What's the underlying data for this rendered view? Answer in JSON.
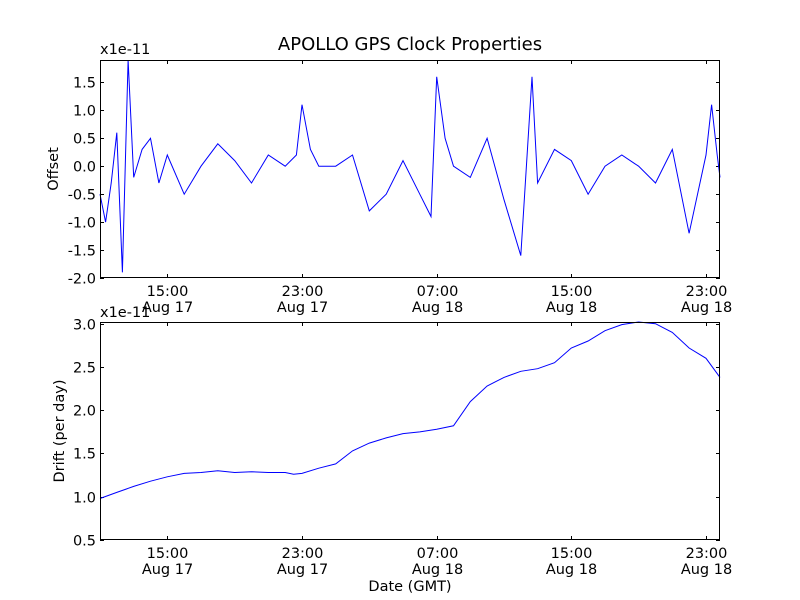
{
  "chart_data": [
    {
      "type": "line",
      "title": "APOLLO GPS Clock Properties",
      "ylabel": "Offset",
      "xlabel": "",
      "y_multiplier": "x1e-11",
      "ylim": [
        -2.0,
        1.9
      ],
      "xlim": [
        "2010-08-17T11:00",
        "2010-08-18T23:50"
      ],
      "yticks": [
        "-2.0",
        "-1.5",
        "-1.0",
        "-0.5",
        "0.0",
        "0.5",
        "1.0",
        "1.5"
      ],
      "xticks": [
        {
          "x": "2010-08-17T15:00",
          "time": "15:00",
          "date": "Aug 17"
        },
        {
          "x": "2010-08-17T23:00",
          "time": "23:00",
          "date": "Aug 17"
        },
        {
          "x": "2010-08-18T07:00",
          "time": "07:00",
          "date": "Aug 18"
        },
        {
          "x": "2010-08-18T15:00",
          "time": "15:00",
          "date": "Aug 18"
        },
        {
          "x": "2010-08-18T23:00",
          "time": "23:00",
          "date": "Aug 18"
        }
      ],
      "grid": false,
      "color": "#0000ff",
      "series": [
        {
          "x": [
            "2010-08-17T11:00",
            "2010-08-17T11:20",
            "2010-08-17T11:40",
            "2010-08-17T12:00",
            "2010-08-17T12:20",
            "2010-08-17T12:40",
            "2010-08-17T13:00",
            "2010-08-17T13:30",
            "2010-08-17T14:00",
            "2010-08-17T14:30",
            "2010-08-17T15:00",
            "2010-08-17T16:00",
            "2010-08-17T17:00",
            "2010-08-17T18:00",
            "2010-08-17T19:00",
            "2010-08-17T20:00",
            "2010-08-17T21:00",
            "2010-08-17T22:00",
            "2010-08-17T22:40",
            "2010-08-17T23:00",
            "2010-08-17T23:30",
            "2010-08-18T00:00",
            "2010-08-18T01:00",
            "2010-08-18T02:00",
            "2010-08-18T03:00",
            "2010-08-18T04:00",
            "2010-08-18T05:00",
            "2010-08-18T06:00",
            "2010-08-18T06:40",
            "2010-08-18T07:00",
            "2010-08-18T07:30",
            "2010-08-18T08:00",
            "2010-08-18T09:00",
            "2010-08-18T10:00",
            "2010-08-18T11:00",
            "2010-08-18T12:00",
            "2010-08-18T12:40",
            "2010-08-18T13:00",
            "2010-08-18T14:00",
            "2010-08-18T15:00",
            "2010-08-18T16:00",
            "2010-08-18T17:00",
            "2010-08-18T18:00",
            "2010-08-18T19:00",
            "2010-08-18T20:00",
            "2010-08-18T21:00",
            "2010-08-18T22:00",
            "2010-08-18T23:00",
            "2010-08-18T23:20",
            "2010-08-18T23:40",
            "2010-08-18T23:50"
          ],
          "values": [
            -0.5,
            -1.0,
            -0.3,
            0.6,
            -1.9,
            1.9,
            -0.2,
            0.3,
            0.5,
            -0.3,
            0.2,
            -0.5,
            0.0,
            0.4,
            0.1,
            -0.3,
            0.2,
            0.0,
            0.2,
            1.1,
            0.3,
            0.0,
            0.0,
            0.2,
            -0.8,
            -0.5,
            0.1,
            -0.5,
            -0.9,
            1.6,
            0.5,
            0.0,
            -0.2,
            0.5,
            -0.6,
            -1.6,
            1.6,
            -0.3,
            0.3,
            0.1,
            -0.5,
            0.0,
            0.2,
            0.0,
            -0.3,
            0.3,
            -1.2,
            0.2,
            1.1,
            0.2,
            -0.2
          ]
        }
      ]
    },
    {
      "type": "line",
      "title": "",
      "ylabel": "Drift (per day)",
      "xlabel": "Date (GMT)",
      "y_multiplier": "x1e-11",
      "ylim": [
        0.5,
        3.02
      ],
      "xlim": [
        "2010-08-17T11:00",
        "2010-08-18T23:50"
      ],
      "yticks": [
        "0.5",
        "1.0",
        "1.5",
        "2.0",
        "2.5",
        "3.0"
      ],
      "xticks": [
        {
          "x": "2010-08-17T15:00",
          "time": "15:00",
          "date": "Aug 17"
        },
        {
          "x": "2010-08-17T23:00",
          "time": "23:00",
          "date": "Aug 17"
        },
        {
          "x": "2010-08-18T07:00",
          "time": "07:00",
          "date": "Aug 18"
        },
        {
          "x": "2010-08-18T15:00",
          "time": "15:00",
          "date": "Aug 18"
        },
        {
          "x": "2010-08-18T23:00",
          "time": "23:00",
          "date": "Aug 18"
        }
      ],
      "grid": false,
      "color": "#0000ff",
      "series": [
        {
          "x": [
            "2010-08-17T11:00",
            "2010-08-17T12:00",
            "2010-08-17T13:00",
            "2010-08-17T14:00",
            "2010-08-17T15:00",
            "2010-08-17T16:00",
            "2010-08-17T17:00",
            "2010-08-17T18:00",
            "2010-08-17T19:00",
            "2010-08-17T20:00",
            "2010-08-17T21:00",
            "2010-08-17T22:00",
            "2010-08-17T22:30",
            "2010-08-17T23:00",
            "2010-08-18T00:00",
            "2010-08-18T01:00",
            "2010-08-18T02:00",
            "2010-08-18T03:00",
            "2010-08-18T04:00",
            "2010-08-18T05:00",
            "2010-08-18T06:00",
            "2010-08-18T07:00",
            "2010-08-18T08:00",
            "2010-08-18T09:00",
            "2010-08-18T10:00",
            "2010-08-18T11:00",
            "2010-08-18T12:00",
            "2010-08-18T13:00",
            "2010-08-18T14:00",
            "2010-08-18T15:00",
            "2010-08-18T16:00",
            "2010-08-18T17:00",
            "2010-08-18T18:00",
            "2010-08-18T19:00",
            "2010-08-18T20:00",
            "2010-08-18T21:00",
            "2010-08-18T22:00",
            "2010-08-18T23:00",
            "2010-08-18T23:50"
          ],
          "values": [
            0.98,
            1.05,
            1.12,
            1.18,
            1.23,
            1.27,
            1.28,
            1.3,
            1.28,
            1.29,
            1.28,
            1.28,
            1.26,
            1.27,
            1.33,
            1.38,
            1.53,
            1.62,
            1.68,
            1.73,
            1.75,
            1.78,
            1.82,
            2.1,
            2.28,
            2.38,
            2.45,
            2.48,
            2.55,
            2.72,
            2.8,
            2.92,
            2.99,
            3.02,
            3.0,
            2.9,
            2.72,
            2.6,
            2.38
          ]
        }
      ]
    }
  ]
}
